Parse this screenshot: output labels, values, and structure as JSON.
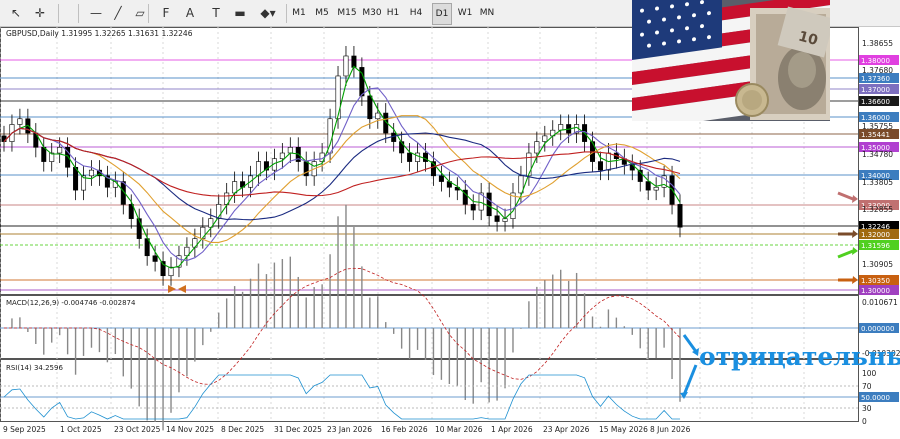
{
  "toolbar": {
    "tools": [
      {
        "name": "cursor-icon",
        "glyph": "↖"
      },
      {
        "name": "crosshair-icon",
        "glyph": "✛"
      },
      {
        "name": "horizontal-line-icon",
        "glyph": "—"
      },
      {
        "name": "trend-line-icon",
        "glyph": "╱"
      },
      {
        "name": "channel-icon",
        "glyph": "▱"
      },
      {
        "name": "fibonacci-icon",
        "glyph": "F"
      },
      {
        "name": "text-icon",
        "glyph": "A"
      },
      {
        "name": "label-icon",
        "glyph": "T"
      },
      {
        "name": "rectangle-icon",
        "glyph": "▬"
      },
      {
        "name": "shapes-icon",
        "glyph": "◆▾"
      }
    ],
    "timeframes": [
      "M1",
      "M5",
      "M15",
      "M30",
      "H1",
      "H4",
      "D1",
      "W1",
      "MN"
    ],
    "active_timeframe": "D1"
  },
  "main": {
    "symbol_header": "GBPUSD,Daily  1.31995 1.32265 1.31631 1.32246",
    "price_labels": [
      {
        "text": "1.38655",
        "kind": "tick"
      },
      {
        "text": "1.38000",
        "kind": "box",
        "color": "#e040e0"
      },
      {
        "text": "1.37680",
        "kind": "tick"
      },
      {
        "text": "1.37360",
        "kind": "box",
        "color": "#3c7dbf"
      },
      {
        "text": "1.37000",
        "kind": "box",
        "color": "#7d6fbf"
      },
      {
        "text": "1.36600",
        "kind": "box",
        "color": "#1a1a1a"
      },
      {
        "text": "1.36000",
        "kind": "box",
        "color": "#3c7dbf"
      },
      {
        "text": "1.35755",
        "kind": "tick"
      },
      {
        "text": "1.35441",
        "kind": "box",
        "color": "#7a4b2a"
      },
      {
        "text": "1.35000",
        "kind": "box",
        "color": "#b040d0"
      },
      {
        "text": "1.34780",
        "kind": "tick"
      },
      {
        "text": "1.34000",
        "kind": "box",
        "color": "#3c7dbf"
      },
      {
        "text": "1.33805",
        "kind": "tick"
      },
      {
        "text": "1.33000",
        "kind": "box",
        "color": "#c07070"
      },
      {
        "text": "1.32855",
        "kind": "tick"
      },
      {
        "text": "1.32246",
        "kind": "box",
        "color": "#000000"
      },
      {
        "text": "1.32000",
        "kind": "box",
        "color": "#a06a10"
      },
      {
        "text": "1.31596",
        "kind": "box",
        "color": "#50d020"
      },
      {
        "text": "1.30905",
        "kind": "tick"
      },
      {
        "text": "1.30350",
        "kind": "box",
        "color": "#c86010"
      },
      {
        "text": "1.30000",
        "kind": "box",
        "color": "#a040c0"
      }
    ]
  },
  "macd": {
    "header": "MACD(12,26,9) -0.004746 -0.002874",
    "labels": [
      {
        "text": "0.010671",
        "kind": "tick"
      },
      {
        "text": "0.000000",
        "kind": "box",
        "color": "#3c7dbf"
      },
      {
        "text": "-0.010302",
        "kind": "tick"
      }
    ]
  },
  "rsi": {
    "header": "RSI(14) 34.2596",
    "labels": [
      {
        "text": "100",
        "kind": "tick"
      },
      {
        "text": "70",
        "kind": "tick"
      },
      {
        "text": "50.0000",
        "kind": "box",
        "color": "#3c7dbf"
      },
      {
        "text": "30",
        "kind": "tick"
      },
      {
        "text": "0",
        "kind": "tick"
      }
    ]
  },
  "time_axis": [
    "9 Sep 2025",
    "1 Oct 2025",
    "23 Oct 2025",
    "14 Nov 2025",
    "8 Dec 2025",
    "31 Dec 2025",
    "23 Jan 2026",
    "16 Feb 2026",
    "10 Mar 2026",
    "1 Apr 2026",
    "23 Apr 2026",
    "15 May 2026",
    "8 Jun 2026"
  ],
  "annotation": {
    "text": "отрицательны",
    "color": "#1a8fe0"
  },
  "image": {
    "description": "US flag and banknotes"
  }
}
